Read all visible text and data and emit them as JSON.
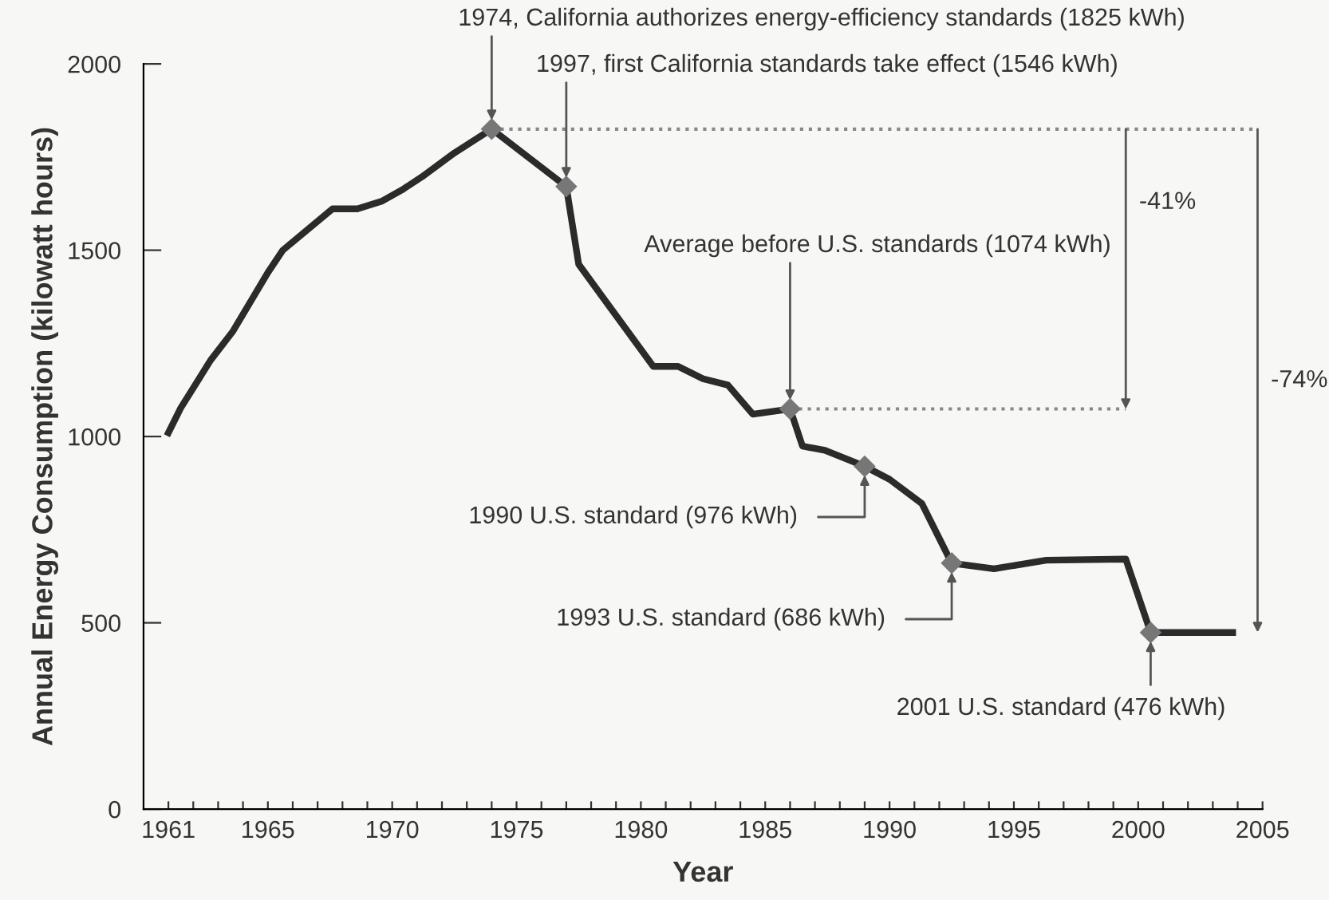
{
  "chart_data": {
    "type": "line",
    "xlabel": "Year",
    "ylabel": "Annual Energy Consumption (kilowatt hours)",
    "xlim": [
      1960,
      2005
    ],
    "xticks": [
      1961,
      {
        "value": 1962,
        "label": null
      },
      {
        "value": 1963,
        "label": null
      },
      {
        "value": 1964,
        "label": null
      },
      1965,
      {
        "value": 1966,
        "label": null
      },
      {
        "value": 1967,
        "label": null
      },
      {
        "value": 1968,
        "label": null
      },
      {
        "value": 1969,
        "label": null
      },
      1970,
      {
        "value": 1971,
        "label": null
      },
      {
        "value": 1972,
        "label": null
      },
      {
        "value": 1973,
        "label": null
      },
      {
        "value": 1974,
        "label": null
      },
      1975,
      {
        "value": 1976,
        "label": null
      },
      {
        "value": 1977,
        "label": null
      },
      {
        "value": 1978,
        "label": null
      },
      {
        "value": 1979,
        "label": null
      },
      1980,
      {
        "value": 1981,
        "label": null
      },
      {
        "value": 1982,
        "label": null
      },
      {
        "value": 1983,
        "label": null
      },
      {
        "value": 1984,
        "label": null
      },
      1985,
      {
        "value": 1986,
        "label": null
      },
      {
        "value": 1987,
        "label": null
      },
      {
        "value": 1988,
        "label": null
      },
      {
        "value": 1989,
        "label": null
      },
      1990,
      {
        "value": 1991,
        "label": null
      },
      {
        "value": 1992,
        "label": null
      },
      {
        "value": 1993,
        "label": null
      },
      {
        "value": 1994,
        "label": null
      },
      1995,
      {
        "value": 1996,
        "label": null
      },
      {
        "value": 1997,
        "label": null
      },
      {
        "value": 1998,
        "label": null
      },
      {
        "value": 1999,
        "label": null
      },
      2000,
      {
        "value": 2001,
        "label": null
      },
      {
        "value": 2002,
        "label": null
      },
      {
        "value": 2003,
        "label": null
      },
      {
        "value": 2004,
        "label": null
      },
      2005
    ],
    "ylim": [
      0,
      2000
    ],
    "yticks": [
      0,
      500,
      1000,
      1500,
      2000
    ],
    "grid": false,
    "legend": false,
    "series": [
      {
        "color": "#2b2b2b",
        "x": [
          1961,
          1961.5,
          1962.7,
          1963.6,
          1965,
          1965.6,
          1967.6,
          1968.6,
          1969.6,
          1970.4,
          1971.2,
          1972.5,
          1974,
          1977,
          1977.5,
          1980.5,
          1981.5,
          1982.5,
          1983.5,
          1984.5,
          1986,
          1986.5,
          1987.4,
          1989,
          1990,
          1991.3,
          1992.5,
          1994.2,
          1996.3,
          1999.5,
          2000.5,
          2003.8
        ],
        "values": [
          1010,
          1077,
          1205,
          1283,
          1440,
          1500,
          1611,
          1611,
          1632,
          1662,
          1697,
          1761,
          1825,
          1671,
          1462,
          1188,
          1188,
          1155,
          1138,
          1060,
          1074,
          974,
          963,
          920,
          885,
          820,
          660,
          645,
          668,
          671,
          474,
          474
        ]
      }
    ],
    "ref_lines": [
      {
        "axis": "y",
        "value": 1825,
        "color": "#888888",
        "line_style": "dotted"
      },
      {
        "axis": "y",
        "value": 1074,
        "color": "#888888",
        "line_style": "dotted"
      }
    ],
    "annotations": [
      {
        "text": "1974, California authorizes energy-efficiency standards (1825 kWh)",
        "x": 1974,
        "y": 1825
      },
      {
        "text": "1997, first California standards take effect (1546 kWh)",
        "x": 1977,
        "y": 1671
      },
      {
        "text": "Average before U.S. standards (1074 kWh)",
        "x": 1986,
        "y": 1074
      },
      {
        "text": "1990 U.S. standard (976 kWh)",
        "x": 1989,
        "y": 920
      },
      {
        "text": "1993 U.S. standard (686 kWh)",
        "x": 1992.5,
        "y": 660
      },
      {
        "text": "2001 U.S. standard (476 kWh)",
        "x": 2000.5,
        "y": 474
      },
      "-41%",
      "-74%"
    ]
  }
}
